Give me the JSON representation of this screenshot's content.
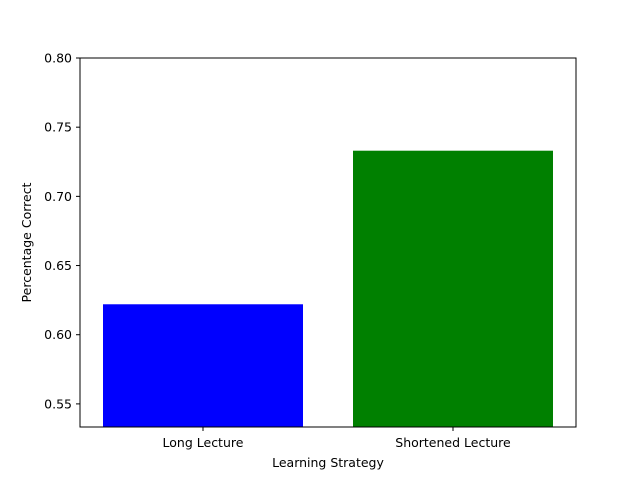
{
  "chart_data": {
    "type": "bar",
    "title": "",
    "xlabel": "Learning Strategy",
    "ylabel": "Percentage Correct",
    "categories": [
      "Long Lecture",
      "Shortened Lecture"
    ],
    "values": [
      0.622,
      0.733
    ],
    "bar_colors": [
      "#0000ff",
      "#008000"
    ],
    "ylim": [
      0.5333,
      0.8
    ],
    "yticks": [
      "0.55",
      "0.60",
      "0.65",
      "0.70",
      "0.75",
      "0.80"
    ],
    "grid": false,
    "legend": "none"
  }
}
